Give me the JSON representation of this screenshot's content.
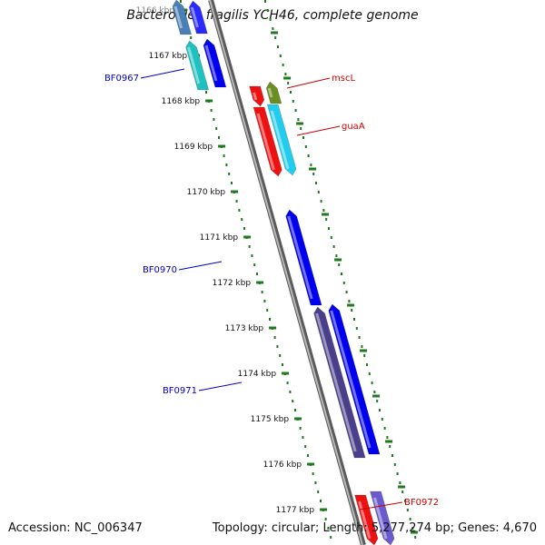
{
  "title": "Bacteroides fragilis YCH46, complete genome",
  "footer": {
    "accession": "Accession: NC_006347",
    "summary": "Topology: circular; Length: 5,277,274 bp; Genes: 4,670"
  },
  "scale": {
    "unit": "kbp",
    "ticks": [
      "1166 kbp",
      "1167 kbp",
      "1168 kbp",
      "1169 kbp",
      "1170 kbp",
      "1171 kbp",
      "1172 kbp",
      "1173 kbp",
      "1174 kbp",
      "1175 kbp",
      "1176 kbp",
      "1177 kbp"
    ]
  },
  "colors": {
    "backbone": "#808080",
    "ruler": "#1f7a1f",
    "label_blue": "#0000cc",
    "label_red": "#cc0000"
  },
  "labels": [
    {
      "text": "BF0967",
      "color": "#0000cc"
    },
    {
      "text": "mscL",
      "color": "#cc0000"
    },
    {
      "text": "guaA",
      "color": "#cc0000"
    },
    {
      "text": "BF0970",
      "color": "#0000cc"
    },
    {
      "text": "BF0971",
      "color": "#0000cc"
    },
    {
      "text": "BF0972",
      "color": "#cc0000"
    }
  ],
  "genes": [
    {
      "color": "#4a7fb5",
      "strand": "-"
    },
    {
      "color": "#2a2aff",
      "strand": "-"
    },
    {
      "color": "#20c0c0",
      "strand": "-"
    },
    {
      "color": "#0000ee",
      "strand": "-"
    },
    {
      "color": "#ee1111",
      "strand": "+"
    },
    {
      "color": "#6b8e23",
      "strand": "-"
    },
    {
      "color": "#ee1111",
      "strand": "+"
    },
    {
      "color": "#22ccee",
      "strand": "+"
    },
    {
      "color": "#0000ee",
      "strand": "-"
    },
    {
      "color": "#4a3f8a",
      "strand": "-"
    },
    {
      "color": "#0000ee",
      "strand": "-"
    },
    {
      "color": "#ee1111",
      "strand": "+"
    },
    {
      "color": "#6a5acd",
      "strand": "+"
    }
  ]
}
